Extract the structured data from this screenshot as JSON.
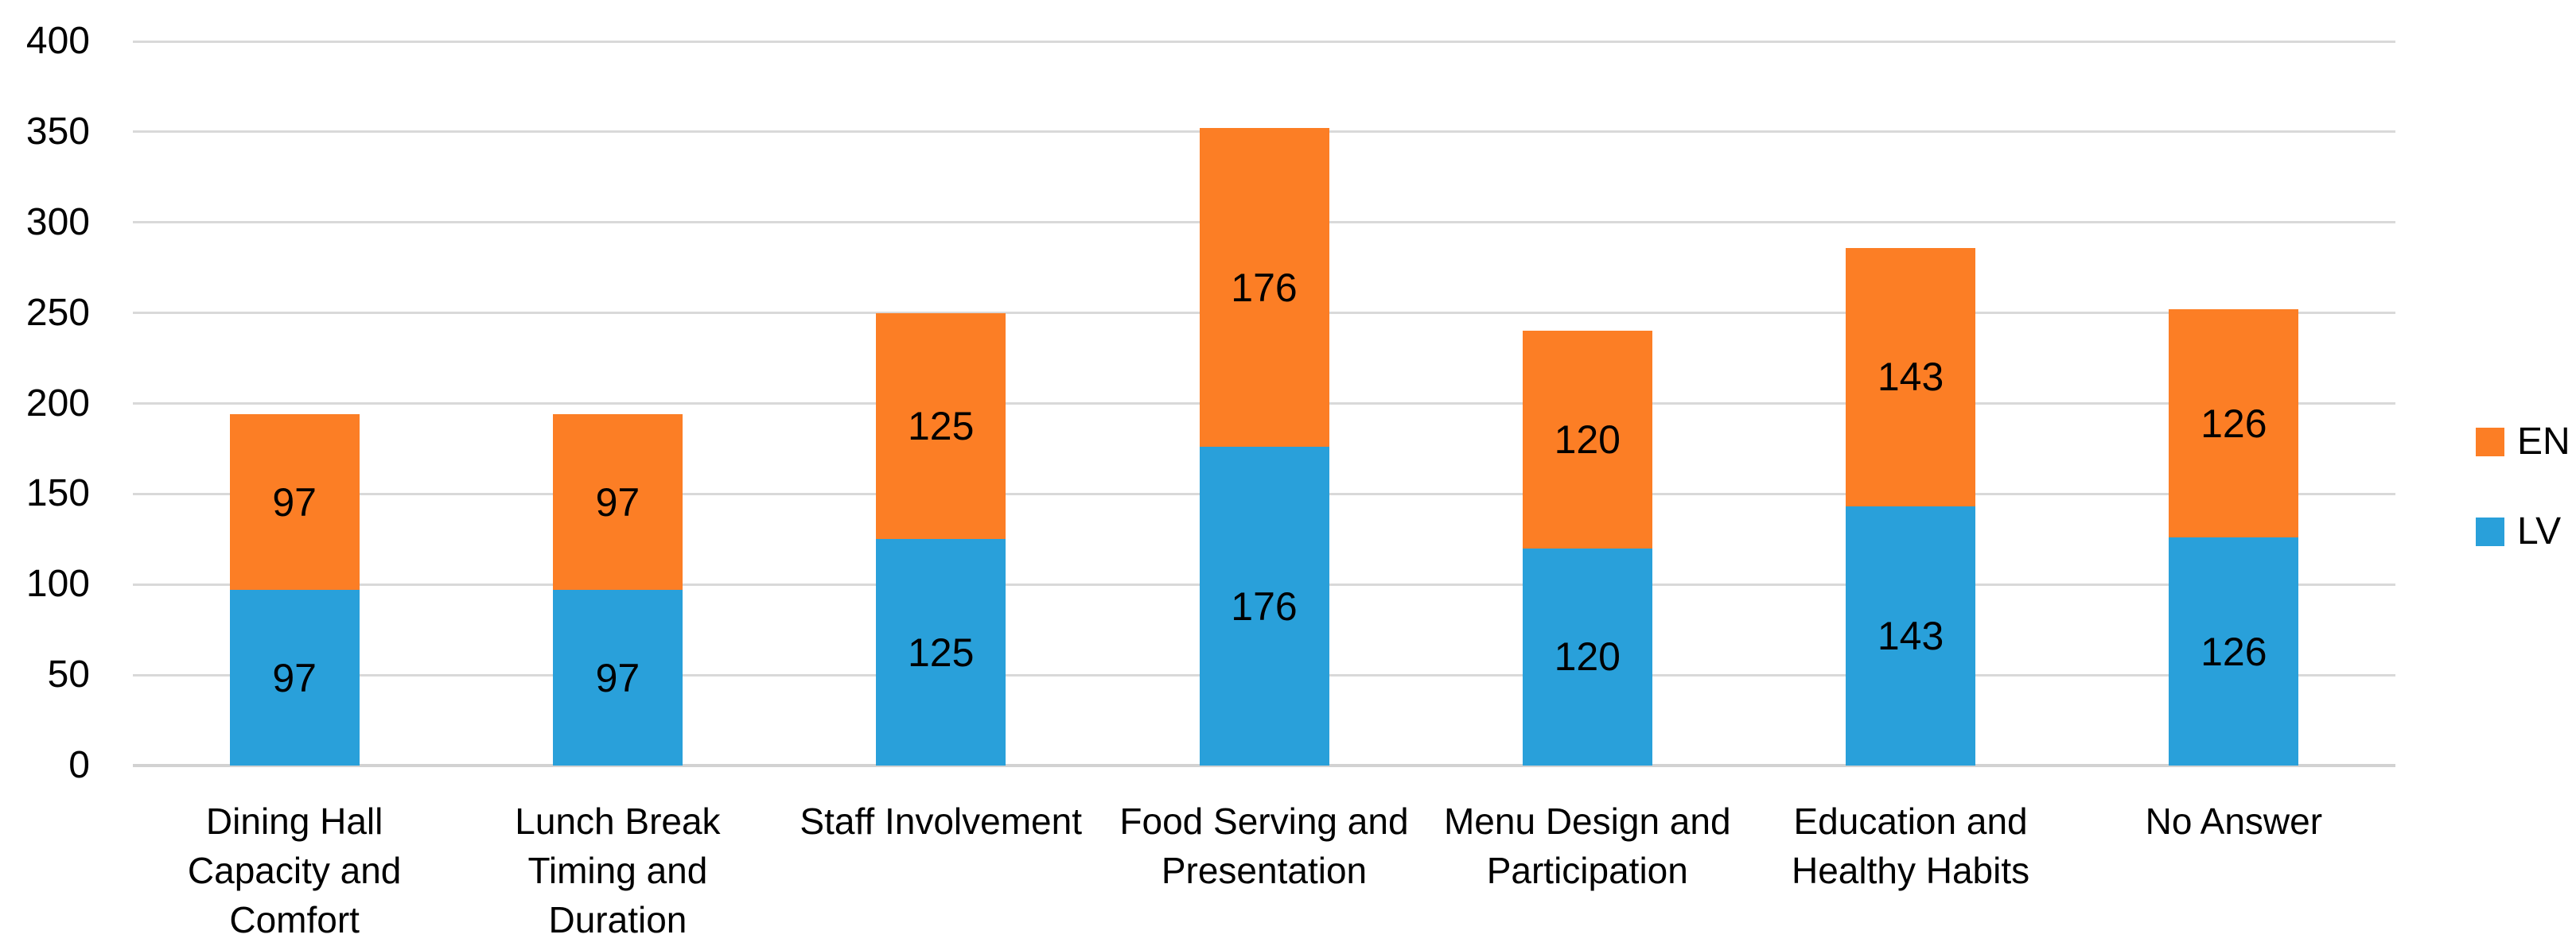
{
  "chart_data": {
    "type": "bar",
    "stacked": true,
    "title": "",
    "xlabel": "",
    "ylabel": "",
    "categories": [
      "Dining Hall Capacity and Comfort",
      "Lunch Break Timing and Duration",
      "Staff Involvement",
      "Food Serving and Presentation",
      "Menu Design and Participation",
      "Education and Healthy Habits",
      "No Answer"
    ],
    "category_lines": [
      [
        "Dining Hall",
        "Capacity and",
        "Comfort"
      ],
      [
        "Lunch Break",
        "Timing and",
        "Duration"
      ],
      [
        "Staff Involvement"
      ],
      [
        "Food Serving and",
        "Presentation"
      ],
      [
        "Menu Design and",
        "Participation"
      ],
      [
        "Education and",
        "Healthy Habits"
      ],
      [
        "No Answer"
      ]
    ],
    "series": [
      {
        "name": "LV",
        "color": "#29A0DA",
        "values": [
          97,
          97,
          125,
          176,
          120,
          143,
          126
        ]
      },
      {
        "name": "EN",
        "color": "#FC7E25",
        "values": [
          97,
          97,
          125,
          176,
          120,
          143,
          126
        ]
      }
    ],
    "totals": [
      194,
      194,
      250,
      352,
      240,
      286,
      252
    ],
    "ylim": [
      0,
      400
    ],
    "ytick_step": 50,
    "ytick_labels": [
      "0",
      "50",
      "100",
      "150",
      "200",
      "250",
      "300",
      "350",
      "400"
    ],
    "grid": true,
    "gridline_color": "#D9D9D9",
    "background_color": "#FFFFFF",
    "text_color": "#000000",
    "data_labels": "center",
    "legend_position": "right",
    "legend_order": [
      "EN",
      "LV"
    ]
  },
  "legend": {
    "items": [
      {
        "label": "EN",
        "color": "#FC7E25"
      },
      {
        "label": "LV",
        "color": "#29A0DA"
      }
    ]
  }
}
